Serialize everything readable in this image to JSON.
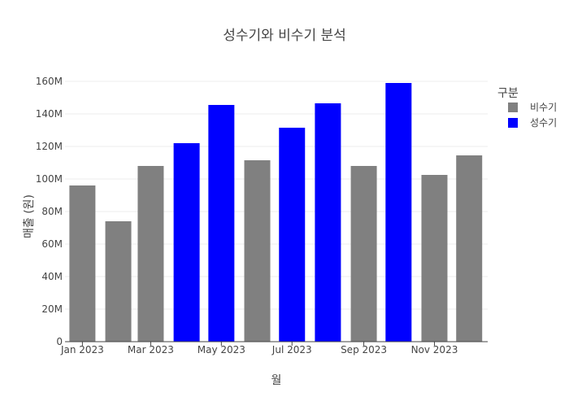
{
  "chart_data": {
    "type": "bar",
    "title": "성수기와 비수기 분석",
    "xlabel": "월",
    "ylabel": "매출 (원)",
    "ylim": [
      0,
      160000000
    ],
    "y_ticks": [
      "0",
      "20M",
      "40M",
      "60M",
      "80M",
      "100M",
      "120M",
      "140M",
      "160M"
    ],
    "x_ticks": [
      "Jan 2023",
      "Mar 2023",
      "May 2023",
      "Jul 2023",
      "Sep 2023",
      "Nov 2023"
    ],
    "grid": true,
    "legend_position": "top-right",
    "legend_title": "구분",
    "legend": [
      {
        "name": "비수기",
        "color": "#808080"
      },
      {
        "name": "성수기",
        "color": "#0000ff"
      }
    ],
    "categories": [
      "2023-01",
      "2023-02",
      "2023-03",
      "2023-04",
      "2023-05",
      "2023-06",
      "2023-07",
      "2023-08",
      "2023-09",
      "2023-10",
      "2023-11",
      "2023-12"
    ],
    "values": [
      96000000,
      74000000,
      108000000,
      122000000,
      145500000,
      111500000,
      131500000,
      146500000,
      108000000,
      159000000,
      102500000,
      114500000
    ],
    "groups": [
      "비수기",
      "비수기",
      "비수기",
      "성수기",
      "성수기",
      "비수기",
      "성수기",
      "성수기",
      "비수기",
      "성수기",
      "비수기",
      "비수기"
    ]
  }
}
